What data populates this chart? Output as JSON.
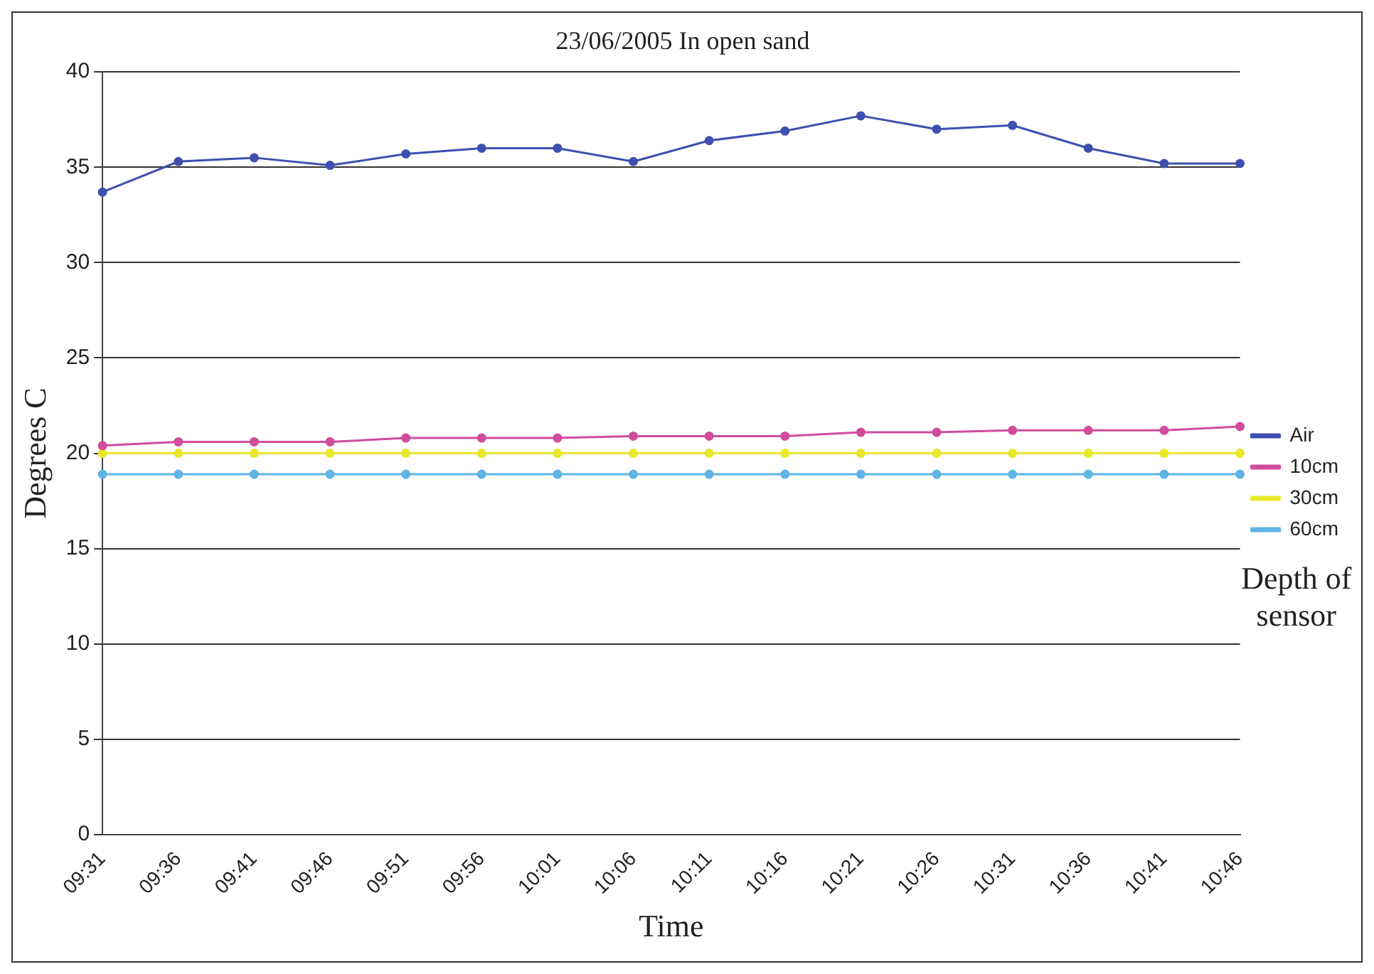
{
  "chart_data": {
    "type": "line",
    "title": "23/06/2005 In open sand",
    "xlabel": "Time",
    "ylabel": "Degrees C",
    "legend_title": "Depth of sensor",
    "categories": [
      "09:31",
      "09:36",
      "09:41",
      "09:46",
      "09:51",
      "09:56",
      "10:01",
      "10:06",
      "10:11",
      "10:16",
      "10:21",
      "10:26",
      "10:31",
      "10:36",
      "10:41",
      "10:46"
    ],
    "series": [
      {
        "name": "Air",
        "color": "#3f4fb0",
        "values": [
          33.7,
          35.3,
          35.5,
          35.1,
          35.7,
          36.0,
          36.0,
          35.3,
          36.4,
          36.9,
          37.7,
          37.0,
          37.2,
          36.0,
          35.2,
          35.2
        ]
      },
      {
        "name": "10cm",
        "color": "#d04c9c",
        "values": [
          20.4,
          20.6,
          20.6,
          20.6,
          20.8,
          20.8,
          20.8,
          20.9,
          20.9,
          20.9,
          21.1,
          21.1,
          21.2,
          21.2,
          21.2,
          21.4
        ]
      },
      {
        "name": "30cm",
        "color": "#e8e82a",
        "values": [
          20,
          20,
          20,
          20,
          20,
          20,
          20,
          20,
          20,
          20,
          20,
          20,
          20,
          20,
          20,
          20
        ]
      },
      {
        "name": "60cm",
        "color": "#5fb4e6",
        "values": [
          18.9,
          18.9,
          18.9,
          18.9,
          18.9,
          18.9,
          18.9,
          18.9,
          18.9,
          18.9,
          18.9,
          18.9,
          18.9,
          18.9,
          18.9,
          18.9
        ]
      }
    ],
    "ylim": [
      0,
      40
    ],
    "yticks": [
      0,
      5,
      10,
      15,
      20,
      25,
      30,
      35,
      40
    ],
    "grid": "y",
    "legend": "right",
    "marker": "circle",
    "line_style": "solid"
  }
}
